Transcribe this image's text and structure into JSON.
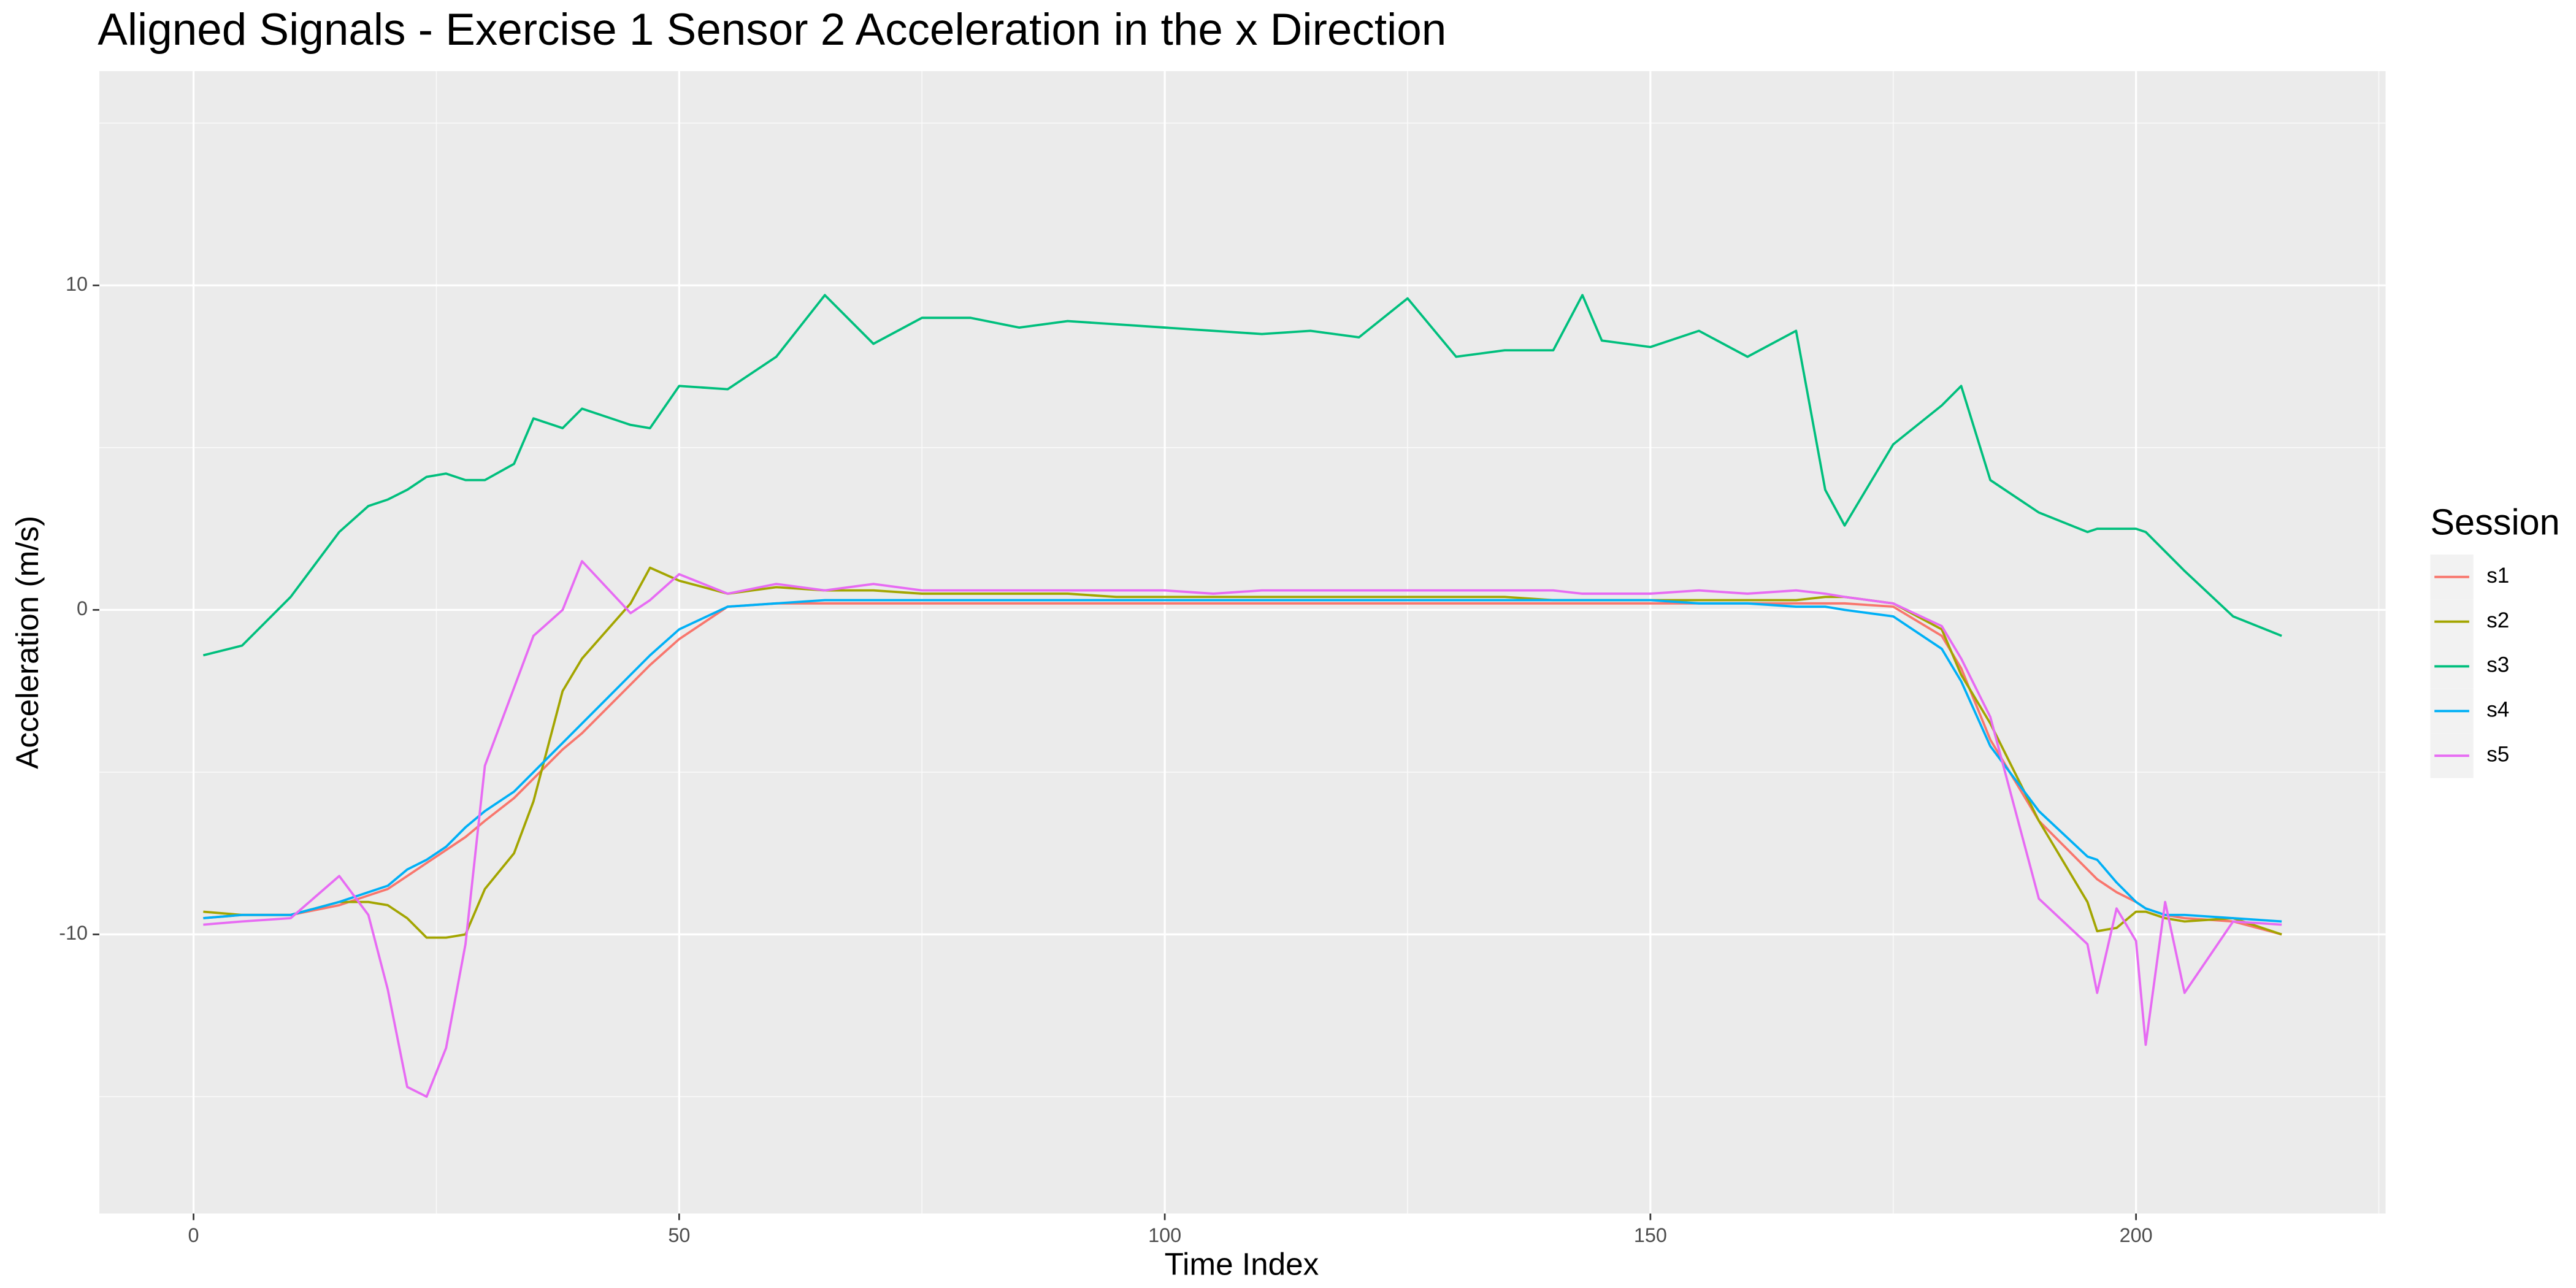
{
  "chart_data": {
    "type": "line",
    "title": "Aligned Signals - Exercise 1 Sensor 2 Acceleration in the x Direction",
    "x_label": "Time Index",
    "y_label": "Acceleration (m/s)",
    "legend_title": "Session",
    "legend_position": "right",
    "grid": true,
    "xlim": [
      -9.7,
      225.7
    ],
    "ylim": [
      -18.6,
      16.6
    ],
    "xticks": [
      0,
      50,
      100,
      150,
      200
    ],
    "yticks": [
      -10,
      0,
      10
    ],
    "x": [
      1,
      5,
      10,
      15,
      18,
      20,
      22,
      24,
      26,
      28,
      30,
      33,
      35,
      38,
      40,
      45,
      47,
      50,
      55,
      60,
      65,
      70,
      75,
      80,
      85,
      90,
      95,
      100,
      105,
      110,
      115,
      120,
      125,
      130,
      135,
      140,
      143,
      145,
      150,
      155,
      160,
      165,
      168,
      170,
      175,
      180,
      182,
      185,
      190,
      195,
      196,
      198,
      200,
      201,
      203,
      205,
      210,
      215
    ],
    "series": [
      {
        "name": "s1",
        "color": "#F8766D",
        "values": [
          -9.5,
          -9.4,
          -9.4,
          -9.1,
          -8.8,
          -8.6,
          -8.2,
          -7.8,
          -7.4,
          -7.0,
          -6.5,
          -5.8,
          -5.2,
          -4.3,
          -3.8,
          -2.3,
          -1.7,
          -0.9,
          0.1,
          0.2,
          0.2,
          0.2,
          0.2,
          0.2,
          0.2,
          0.2,
          0.2,
          0.2,
          0.2,
          0.2,
          0.2,
          0.2,
          0.2,
          0.2,
          0.2,
          0.2,
          0.2,
          0.2,
          0.2,
          0.2,
          0.2,
          0.2,
          0.2,
          0.2,
          0.1,
          -0.8,
          -1.8,
          -4.0,
          -6.5,
          -8.0,
          -8.3,
          -8.7,
          -9.0,
          -9.2,
          -9.4,
          -9.5,
          -9.6,
          -10.0
        ]
      },
      {
        "name": "s2",
        "color": "#A3A500",
        "values": [
          -9.3,
          -9.4,
          -9.4,
          -9.0,
          -9.0,
          -9.1,
          -9.5,
          -10.1,
          -10.1,
          -10.0,
          -8.6,
          -7.5,
          -5.9,
          -2.5,
          -1.5,
          0.2,
          1.3,
          0.9,
          0.5,
          0.7,
          0.6,
          0.6,
          0.5,
          0.5,
          0.5,
          0.5,
          0.4,
          0.4,
          0.4,
          0.4,
          0.4,
          0.4,
          0.4,
          0.4,
          0.4,
          0.3,
          0.3,
          0.3,
          0.3,
          0.3,
          0.3,
          0.3,
          0.4,
          0.4,
          0.2,
          -0.6,
          -2.0,
          -3.5,
          -6.5,
          -9.0,
          -9.9,
          -9.8,
          -9.3,
          -9.3,
          -9.5,
          -9.6,
          -9.5,
          -10.0
        ]
      },
      {
        "name": "s3",
        "color": "#00BF7D",
        "values": [
          -1.4,
          -1.1,
          0.4,
          2.4,
          3.2,
          3.4,
          3.7,
          4.1,
          4.2,
          4.0,
          4.0,
          4.5,
          5.9,
          5.6,
          6.2,
          5.7,
          5.6,
          6.9,
          6.8,
          7.8,
          9.7,
          8.2,
          9.0,
          9.0,
          8.7,
          8.9,
          8.8,
          8.7,
          8.6,
          8.5,
          8.6,
          8.4,
          9.6,
          7.8,
          8.0,
          8.0,
          9.7,
          8.3,
          8.1,
          8.6,
          7.8,
          8.6,
          3.7,
          2.6,
          5.1,
          6.3,
          6.9,
          4.0,
          3.0,
          2.4,
          2.5,
          2.5,
          2.5,
          2.4,
          1.8,
          1.2,
          -0.2,
          -0.8
        ]
      },
      {
        "name": "s4",
        "color": "#00B0F6",
        "values": [
          -9.5,
          -9.4,
          -9.4,
          -9.0,
          -8.7,
          -8.5,
          -8.0,
          -7.7,
          -7.3,
          -6.7,
          -6.2,
          -5.6,
          -5.0,
          -4.1,
          -3.5,
          -2.0,
          -1.4,
          -0.6,
          0.1,
          0.2,
          0.3,
          0.3,
          0.3,
          0.3,
          0.3,
          0.3,
          0.3,
          0.3,
          0.3,
          0.3,
          0.3,
          0.3,
          0.3,
          0.3,
          0.3,
          0.3,
          0.3,
          0.3,
          0.3,
          0.2,
          0.2,
          0.1,
          0.1,
          0.0,
          -0.2,
          -1.2,
          -2.2,
          -4.2,
          -6.2,
          -7.6,
          -7.7,
          -8.4,
          -9.0,
          -9.2,
          -9.4,
          -9.4,
          -9.5,
          -9.6
        ]
      },
      {
        "name": "s5",
        "color": "#E76BF3",
        "values": [
          -9.7,
          -9.6,
          -9.5,
          -8.2,
          -9.4,
          -11.7,
          -14.7,
          -15.0,
          -13.5,
          -10.3,
          -4.8,
          -2.4,
          -0.8,
          0.0,
          1.5,
          -0.1,
          0.3,
          1.1,
          0.5,
          0.8,
          0.6,
          0.8,
          0.6,
          0.6,
          0.6,
          0.6,
          0.6,
          0.6,
          0.5,
          0.6,
          0.6,
          0.6,
          0.6,
          0.6,
          0.6,
          0.6,
          0.5,
          0.5,
          0.5,
          0.6,
          0.5,
          0.6,
          0.5,
          0.4,
          0.2,
          -0.5,
          -1.5,
          -3.3,
          -8.9,
          -10.3,
          -11.8,
          -9.2,
          -10.2,
          -13.4,
          -9.0,
          -11.8,
          -9.6,
          -9.7
        ]
      }
    ]
  }
}
